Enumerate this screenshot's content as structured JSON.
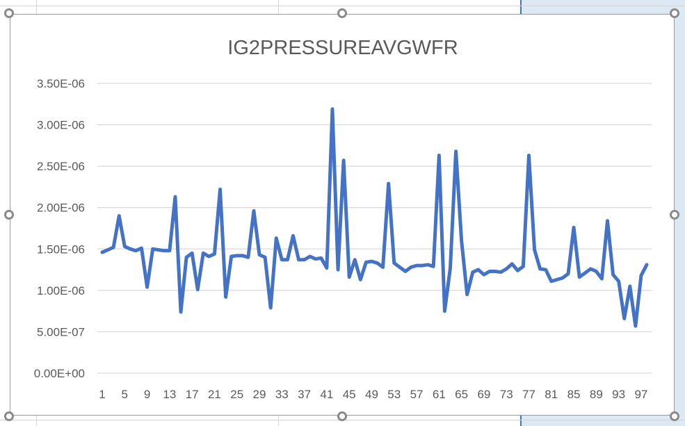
{
  "colors": {
    "series": "#4472C4",
    "frame_border": "#9a9a9a",
    "selection": "#dde8f5"
  },
  "chart_data": {
    "type": "line",
    "title": "IG2PRESSUREAVGWFR",
    "xlabel": "",
    "ylabel": "",
    "ylim": [
      0,
      3.5e-06
    ],
    "grid": true,
    "legend": "none",
    "y_ticks": [
      {
        "value": 0,
        "label": "0.00E+00"
      },
      {
        "value": 5e-07,
        "label": "5.00E-07"
      },
      {
        "value": 1e-06,
        "label": "1.00E-06"
      },
      {
        "value": 1.5e-06,
        "label": "1.50E-06"
      },
      {
        "value": 2e-06,
        "label": "2.00E-06"
      },
      {
        "value": 2.5e-06,
        "label": "2.50E-06"
      },
      {
        "value": 3e-06,
        "label": "3.00E-06"
      },
      {
        "value": 3.5e-06,
        "label": "3.50E-06"
      }
    ],
    "x_tick_labels": [
      "1",
      "5",
      "9",
      "13",
      "17",
      "21",
      "25",
      "29",
      "33",
      "37",
      "41",
      "45",
      "49",
      "53",
      "57",
      "61",
      "65",
      "69",
      "73",
      "77",
      "81",
      "85",
      "89",
      "93",
      "97"
    ],
    "x_range": [
      1,
      98
    ],
    "series": [
      {
        "values": [
          1.46e-06,
          1.49e-06,
          1.52e-06,
          1.9e-06,
          1.53e-06,
          1.5e-06,
          1.48e-06,
          1.51e-06,
          1.04e-06,
          1.5e-06,
          1.49e-06,
          1.48e-06,
          1.48e-06,
          2.13e-06,
          7.4e-07,
          1.4e-06,
          1.45e-06,
          1.01e-06,
          1.45e-06,
          1.41e-06,
          1.44e-06,
          2.22e-06,
          9.2e-07,
          1.41e-06,
          1.42e-06,
          1.42e-06,
          1.4e-06,
          1.96e-06,
          1.43e-06,
          1.4e-06,
          7.9e-07,
          1.63e-06,
          1.37e-06,
          1.37e-06,
          1.66e-06,
          1.37e-06,
          1.37e-06,
          1.41e-06,
          1.38e-06,
          1.39e-06,
          1.27e-06,
          3.19e-06,
          1.25e-06,
          2.57e-06,
          1.16e-06,
          1.37e-06,
          1.13e-06,
          1.34e-06,
          1.35e-06,
          1.33e-06,
          1.28e-06,
          2.29e-06,
          1.33e-06,
          1.28e-06,
          1.23e-06,
          1.28e-06,
          1.3e-06,
          1.3e-06,
          1.31e-06,
          1.29e-06,
          2.63e-06,
          7.5e-07,
          1.27e-06,
          2.68e-06,
          1.6e-06,
          9.5e-07,
          1.22e-06,
          1.25e-06,
          1.19e-06,
          1.23e-06,
          1.23e-06,
          1.22e-06,
          1.26e-06,
          1.32e-06,
          1.24e-06,
          1.29e-06,
          2.63e-06,
          1.49e-06,
          1.26e-06,
          1.25e-06,
          1.11e-06,
          1.13e-06,
          1.15e-06,
          1.2e-06,
          1.76e-06,
          1.16e-06,
          1.21e-06,
          1.26e-06,
          1.23e-06,
          1.14e-06,
          1.84e-06,
          1.19e-06,
          1.11e-06,
          6.6e-07,
          1.05e-06,
          5.7e-07,
          1.18e-06,
          1.31e-06
        ]
      }
    ]
  }
}
